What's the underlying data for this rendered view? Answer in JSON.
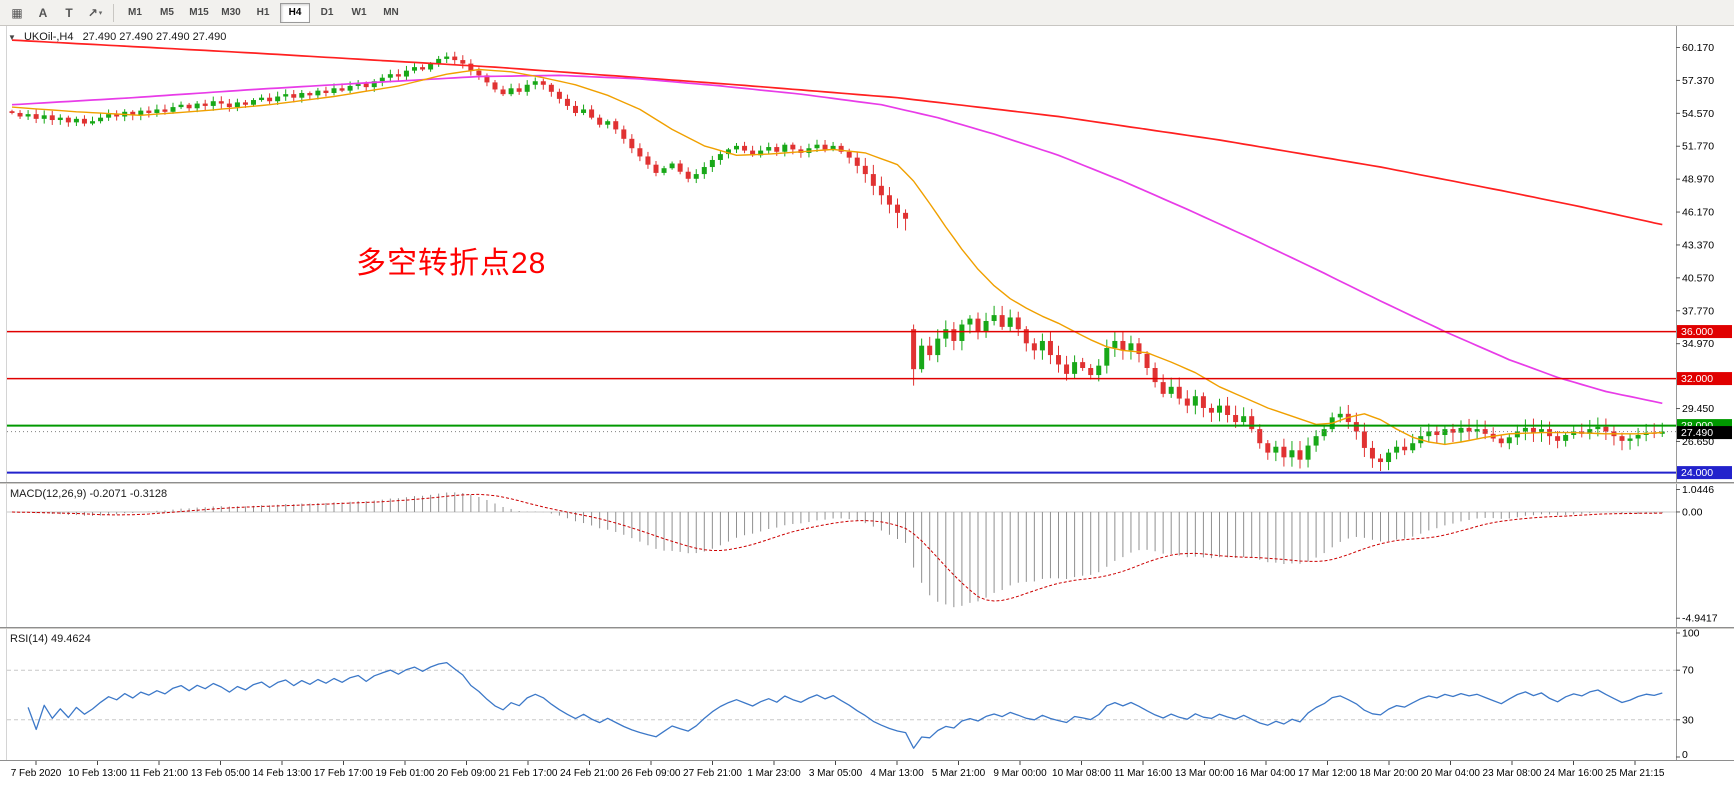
{
  "toolbar": {
    "tools": [
      {
        "name": "chart-grid-tool",
        "glyph": "▦"
      },
      {
        "name": "text-a-tool",
        "glyph": "A"
      },
      {
        "name": "text-t-tool",
        "glyph": "T"
      },
      {
        "name": "indicators-tool",
        "glyph": "↗",
        "caret": "▾"
      }
    ],
    "timeframes": [
      {
        "label": "M1",
        "active": false
      },
      {
        "label": "M5",
        "active": false
      },
      {
        "label": "M15",
        "active": false
      },
      {
        "label": "M30",
        "active": false
      },
      {
        "label": "H1",
        "active": false
      },
      {
        "label": "H4",
        "active": true
      },
      {
        "label": "D1",
        "active": false
      },
      {
        "label": "W1",
        "active": false
      },
      {
        "label": "MN",
        "active": false
      }
    ]
  },
  "chart": {
    "symbol_info": {
      "expander": "▼",
      "label": "UKOil-,H4",
      "ohlc": "27.490 27.490 27.490 27.490"
    },
    "annotation": {
      "text": "多空转折点28",
      "color": "#ff0000"
    },
    "candle_up_color": "#18a818",
    "candle_down_color": "#e03232",
    "ylim": [
      23.2,
      62.0
    ],
    "price_ticks": [
      "60.170",
      "57.370",
      "54.570",
      "51.770",
      "48.970",
      "46.170",
      "43.370",
      "40.570",
      "37.770",
      "34.970",
      "29.450",
      "26.650"
    ],
    "hlines": [
      {
        "label": "36.000",
        "value": 36.0,
        "color": "#e00000",
        "width": 1.5
      },
      {
        "label": "32.000",
        "value": 32.0,
        "color": "#e00000",
        "width": 1.5
      },
      {
        "label": "28.000",
        "value": 28.0,
        "color": "#009900",
        "width": 2
      },
      {
        "label": "24.000",
        "value": 24.0,
        "color": "#2222cc",
        "width": 2
      }
    ],
    "current_price": {
      "label": "27.490",
      "value": 27.49,
      "color": "#000000"
    }
  },
  "macd_panel": {
    "label": "MACD(12,26,9) -0.2071 -0.3128",
    "axis_labels": [
      {
        "text": "1.0446",
        "value": 1.0446
      },
      {
        "text": "0.00",
        "value": 0
      },
      {
        "text": "-4.9417",
        "value": -4.9417
      }
    ],
    "range": [
      -5.35,
      1.3
    ],
    "histogram_color": "#909090",
    "signal_color": "#cc0000"
  },
  "rsi_panel": {
    "label": "RSI(14) 49.4624",
    "axis_labels": [
      {
        "text": "100",
        "value": 100
      },
      {
        "text": "70",
        "value": 70
      },
      {
        "text": "30",
        "value": 30
      },
      {
        "text": "0",
        "value": 0
      }
    ],
    "levels": [
      70,
      30
    ],
    "line_color": "#3c78c8",
    "range": [
      0,
      100
    ]
  },
  "time_axis": {
    "labels": [
      "7 Feb 2020",
      "10 Feb 13:00",
      "11 Feb 21:00",
      "13 Feb 05:00",
      "14 Feb 13:00",
      "17 Feb 17:00",
      "19 Feb 01:00",
      "20 Feb 09:00",
      "21 Feb 17:00",
      "24 Feb 21:00",
      "26 Feb 09:00",
      "27 Feb 21:00",
      "1 Mar 23:00",
      "3 Mar 05:00",
      "4 Mar 13:00",
      "5 Mar 21:00",
      "9 Mar 00:00",
      "10 Mar 08:00",
      "11 Mar 16:00",
      "13 Mar 00:00",
      "16 Mar 04:00",
      "17 Mar 12:00",
      "18 Mar 20:00",
      "20 Mar 04:00",
      "23 Mar 08:00",
      "24 Mar 16:00",
      "25 Mar 21:15"
    ]
  },
  "chart_data": {
    "type": "candlestick",
    "symbol": "UKOil-",
    "timeframe": "H4",
    "ohlc_display": [
      27.49,
      27.49,
      27.49,
      27.49
    ],
    "closes": [
      54.6,
      54.3,
      54.5,
      54.1,
      54.4,
      54.0,
      54.2,
      53.8,
      54.1,
      53.7,
      53.9,
      54.2,
      54.5,
      54.3,
      54.7,
      54.4,
      54.8,
      54.6,
      54.9,
      54.7,
      55.1,
      55.3,
      55.0,
      55.4,
      55.2,
      55.6,
      55.4,
      55.1,
      55.5,
      55.3,
      55.7,
      55.9,
      55.6,
      56.0,
      56.2,
      55.9,
      56.3,
      56.1,
      56.5,
      56.3,
      56.7,
      56.5,
      56.9,
      57.1,
      56.8,
      57.3,
      57.6,
      57.9,
      57.7,
      58.2,
      58.5,
      58.3,
      58.8,
      59.2,
      59.4,
      59.1,
      58.8,
      58.2,
      57.8,
      57.2,
      56.6,
      56.2,
      56.7,
      56.4,
      57.0,
      57.3,
      57.0,
      56.4,
      55.8,
      55.2,
      54.6,
      54.9,
      54.2,
      53.6,
      53.9,
      53.2,
      52.4,
      51.6,
      50.9,
      50.2,
      49.5,
      49.9,
      50.3,
      49.6,
      49.0,
      49.4,
      50.0,
      50.6,
      51.1,
      51.5,
      51.8,
      51.4,
      51.0,
      51.4,
      51.7,
      51.3,
      51.9,
      51.5,
      51.2,
      51.6,
      51.9,
      51.5,
      51.8,
      51.3,
      50.8,
      50.1,
      49.4,
      48.4,
      47.6,
      46.8,
      46.1,
      45.6,
      32.8,
      34.8,
      34.0,
      35.4,
      36.2,
      35.2,
      36.6,
      37.1,
      36.0,
      36.9,
      37.4,
      36.4,
      37.2,
      36.2,
      35.0,
      34.4,
      35.2,
      34.0,
      33.2,
      32.4,
      33.4,
      32.9,
      32.3,
      33.1,
      34.6,
      35.2,
      34.4,
      35.0,
      34.1,
      32.9,
      31.7,
      30.7,
      31.3,
      30.3,
      29.7,
      30.5,
      29.5,
      29.1,
      29.7,
      28.9,
      28.3,
      28.8,
      27.7,
      26.5,
      25.7,
      26.2,
      25.3,
      25.9,
      25.1,
      26.3,
      27.1,
      27.7,
      28.7,
      29.0,
      28.3,
      27.5,
      26.1,
      25.2,
      24.9,
      25.7,
      26.2,
      25.9,
      26.5,
      27.1,
      27.5,
      27.2,
      27.7,
      27.4,
      27.8,
      27.5,
      27.7,
      27.3,
      26.9,
      26.5,
      27.0,
      27.5,
      27.8,
      27.4,
      27.7,
      27.1,
      26.7,
      27.2,
      27.5,
      27.3,
      27.7,
      27.9,
      27.5,
      27.1,
      26.7,
      26.9,
      27.2,
      27.4,
      27.3,
      27.49
    ],
    "opens_override": {
      "112": 36.2
    },
    "highs_override": {
      "112": 36.6
    },
    "lows_override": {
      "110": 44.8,
      "111": 44.6,
      "112": 31.4
    },
    "moving_averages": [
      {
        "name": "ma-slow",
        "color": "#ff2020",
        "width": 1.7,
        "points": [
          [
            0,
            60.8
          ],
          [
            30,
            59.7
          ],
          [
            60,
            58.5
          ],
          [
            90,
            57.0
          ],
          [
            110,
            55.9
          ],
          [
            130,
            54.3
          ],
          [
            150,
            52.3
          ],
          [
            170,
            50.0
          ],
          [
            185,
            48.0
          ],
          [
            195,
            46.6
          ],
          [
            205,
            45.1
          ]
        ]
      },
      {
        "name": "ma-medium",
        "color": "#e83ce8",
        "width": 1.7,
        "points": [
          [
            0,
            55.3
          ],
          [
            15,
            55.9
          ],
          [
            30,
            56.6
          ],
          [
            45,
            57.2
          ],
          [
            58,
            57.7
          ],
          [
            68,
            57.8
          ],
          [
            78,
            57.5
          ],
          [
            88,
            56.9
          ],
          [
            98,
            56.2
          ],
          [
            108,
            55.3
          ],
          [
            115,
            54.2
          ],
          [
            122,
            52.8
          ],
          [
            130,
            51.0
          ],
          [
            138,
            48.8
          ],
          [
            146,
            46.4
          ],
          [
            154,
            43.9
          ],
          [
            162,
            41.3
          ],
          [
            170,
            38.6
          ],
          [
            178,
            36.0
          ],
          [
            186,
            33.6
          ],
          [
            192,
            32.1
          ],
          [
            198,
            30.9
          ],
          [
            205,
            29.9
          ]
        ]
      },
      {
        "name": "ma-fast",
        "color": "#f0a000",
        "width": 1.4,
        "points": [
          [
            0,
            55.1
          ],
          [
            8,
            54.7
          ],
          [
            16,
            54.4
          ],
          [
            24,
            54.8
          ],
          [
            32,
            55.3
          ],
          [
            40,
            56.0
          ],
          [
            48,
            56.9
          ],
          [
            54,
            57.9
          ],
          [
            58,
            58.3
          ],
          [
            62,
            58.1
          ],
          [
            66,
            57.6
          ],
          [
            70,
            57.0
          ],
          [
            74,
            56.1
          ],
          [
            78,
            54.9
          ],
          [
            82,
            53.2
          ],
          [
            86,
            51.8
          ],
          [
            90,
            51.0
          ],
          [
            94,
            51.1
          ],
          [
            98,
            51.3
          ],
          [
            102,
            51.5
          ],
          [
            106,
            51.2
          ],
          [
            110,
            50.2
          ],
          [
            112,
            48.8
          ],
          [
            114,
            46.9
          ],
          [
            116,
            44.9
          ],
          [
            118,
            43.0
          ],
          [
            120,
            41.3
          ],
          [
            122,
            39.9
          ],
          [
            124,
            38.8
          ],
          [
            126,
            38.0
          ],
          [
            128,
            37.3
          ],
          [
            130,
            36.7
          ],
          [
            132,
            36.0
          ],
          [
            134,
            35.3
          ],
          [
            136,
            34.7
          ],
          [
            138,
            34.4
          ],
          [
            141,
            34.2
          ],
          [
            144,
            33.4
          ],
          [
            147,
            32.5
          ],
          [
            150,
            31.3
          ],
          [
            153,
            30.4
          ],
          [
            156,
            29.5
          ],
          [
            159,
            28.8
          ],
          [
            162,
            28.1
          ],
          [
            164,
            28.2
          ],
          [
            166,
            28.7
          ],
          [
            168,
            29.0
          ],
          [
            170,
            28.5
          ],
          [
            172,
            27.7
          ],
          [
            174,
            27.0
          ],
          [
            176,
            26.6
          ],
          [
            178,
            26.4
          ],
          [
            180,
            26.6
          ],
          [
            183,
            27.0
          ],
          [
            186,
            27.3
          ],
          [
            190,
            27.4
          ],
          [
            194,
            27.4
          ],
          [
            198,
            27.3
          ],
          [
            202,
            27.3
          ],
          [
            205,
            27.4
          ]
        ]
      }
    ],
    "macd_params": [
      12,
      26,
      9
    ],
    "rsi_period": 14
  }
}
